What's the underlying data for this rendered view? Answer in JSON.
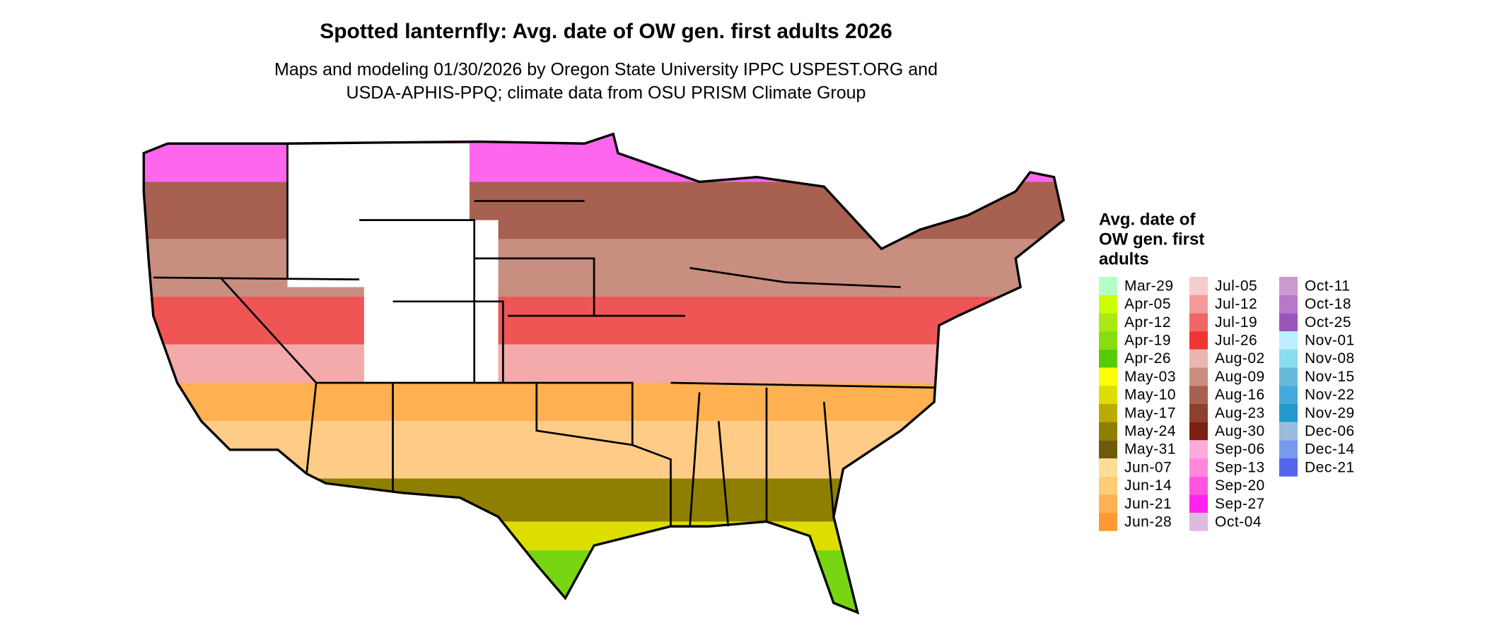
{
  "title": "Spotted lanternfly: Avg. date of OW gen. first adults 2026",
  "subtitle": [
    "Maps and modeling 01/30/2026 by Oregon State University IPPC USPEST.ORG and",
    "USDA-APHIS-PPQ; climate data from OSU PRISM Climate Group"
  ],
  "legend": {
    "title": [
      "Avg. date of",
      "OW gen. first",
      "adults"
    ],
    "items": [
      {
        "label": "Mar-29",
        "color": "#b3ffc8"
      },
      {
        "label": "Apr-05",
        "color": "#ccff00"
      },
      {
        "label": "Apr-12",
        "color": "#aaea11"
      },
      {
        "label": "Apr-19",
        "color": "#88dd11"
      },
      {
        "label": "Apr-26",
        "color": "#55cc00"
      },
      {
        "label": "May-03",
        "color": "#ffff00"
      },
      {
        "label": "May-10",
        "color": "#dddd00"
      },
      {
        "label": "May-17",
        "color": "#bbaa00"
      },
      {
        "label": "May-24",
        "color": "#8f7f00"
      },
      {
        "label": "May-31",
        "color": "#6e5a08"
      },
      {
        "label": "Jun-07",
        "color": "#ffdd99"
      },
      {
        "label": "Jun-14",
        "color": "#ffcc77"
      },
      {
        "label": "Jun-21",
        "color": "#ffb050"
      },
      {
        "label": "Jun-28",
        "color": "#ff9933"
      },
      {
        "label": "Jul-05",
        "color": "#f6cccc"
      },
      {
        "label": "Jul-12",
        "color": "#f49a9a"
      },
      {
        "label": "Jul-19",
        "color": "#f06666"
      },
      {
        "label": "Jul-26",
        "color": "#f03333"
      },
      {
        "label": "Aug-02",
        "color": "#e8b8b0"
      },
      {
        "label": "Aug-09",
        "color": "#c88e80"
      },
      {
        "label": "Aug-16",
        "color": "#a86050"
      },
      {
        "label": "Aug-23",
        "color": "#8e4030"
      },
      {
        "label": "Aug-30",
        "color": "#7a2010"
      },
      {
        "label": "Sep-06",
        "color": "#ffaadd"
      },
      {
        "label": "Sep-13",
        "color": "#ff88dd"
      },
      {
        "label": "Sep-20",
        "color": "#ff55dd"
      },
      {
        "label": "Sep-27",
        "color": "#ff22ee"
      },
      {
        "label": "Oct-04",
        "color": "#ddbbdd"
      },
      {
        "label": "Oct-11",
        "color": "#cc99cc"
      },
      {
        "label": "Oct-18",
        "color": "#bb77cc"
      },
      {
        "label": "Oct-25",
        "color": "#9955bb"
      },
      {
        "label": "Nov-01",
        "color": "#bbeeff"
      },
      {
        "label": "Nov-08",
        "color": "#88ddee"
      },
      {
        "label": "Nov-15",
        "color": "#66bbdd"
      },
      {
        "label": "Nov-22",
        "color": "#44aadd"
      },
      {
        "label": "Nov-29",
        "color": "#2299cc"
      },
      {
        "label": "Dec-06",
        "color": "#99bbdd"
      },
      {
        "label": "Dec-14",
        "color": "#7799ee"
      },
      {
        "label": "Dec-21",
        "color": "#5566ee"
      }
    ]
  }
}
